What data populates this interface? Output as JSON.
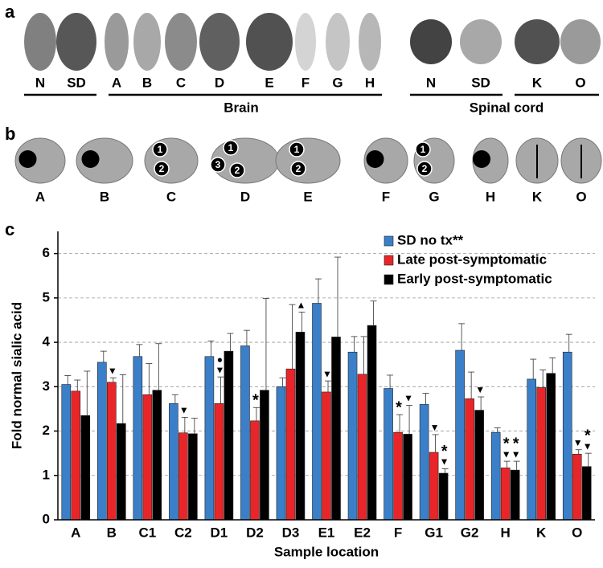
{
  "panel_a": {
    "label": "a",
    "items": [
      "N",
      "SD",
      "A",
      "B",
      "C",
      "D",
      "E",
      "F",
      "G",
      "H",
      "N",
      "SD",
      "K",
      "O"
    ],
    "groups": [
      "Brain",
      "Spinal cord"
    ]
  },
  "panel_b": {
    "label": "b",
    "items": [
      {
        "name": "A",
        "markers": []
      },
      {
        "name": "B",
        "markers": []
      },
      {
        "name": "C",
        "markers": [
          "1",
          "2"
        ]
      },
      {
        "name": "D",
        "markers": [
          "1",
          "3",
          "2"
        ]
      },
      {
        "name": "E",
        "markers": [
          "1",
          "2"
        ]
      },
      {
        "name": "F",
        "markers": []
      },
      {
        "name": "G",
        "markers": [
          "1",
          "2"
        ]
      },
      {
        "name": "H",
        "markers": []
      },
      {
        "name": "K",
        "markers": []
      },
      {
        "name": "O",
        "markers": []
      }
    ]
  },
  "chart_data": {
    "type": "bar",
    "panel_label": "c",
    "y_label": "Fold normal sialic acid",
    "x_label": "Sample location",
    "categories": [
      "A",
      "B",
      "C1",
      "C2",
      "D1",
      "D2",
      "D3",
      "E1",
      "E2",
      "F",
      "G1",
      "G2",
      "H",
      "K",
      "O"
    ],
    "series": [
      {
        "name": "SD no tx**",
        "color": "#3b7fc8",
        "values": [
          3.05,
          3.55,
          3.68,
          2.62,
          3.68,
          3.92,
          3.0,
          4.88,
          3.78,
          2.96,
          2.6,
          3.82,
          1.97,
          3.17,
          3.78
        ],
        "errors": [
          0.2,
          0.25,
          0.27,
          0.2,
          0.35,
          0.35,
          0.2,
          0.55,
          0.35,
          0.3,
          0.25,
          0.6,
          0.1,
          0.45,
          0.4
        ]
      },
      {
        "name": "Late post-symptomatic",
        "color": "#e8262a",
        "values": [
          2.9,
          3.1,
          2.82,
          1.96,
          2.62,
          2.23,
          3.4,
          2.88,
          3.28,
          1.97,
          1.52,
          2.73,
          1.17,
          2.98,
          1.48
        ],
        "errors": [
          0.25,
          0.1,
          0.7,
          0.35,
          0.6,
          0.3,
          1.45,
          0.25,
          0.85,
          0.4,
          0.4,
          0.6,
          0.15,
          0.4,
          0.1
        ]
      },
      {
        "name": "Early post-symptomatic",
        "color": "#000000",
        "values": [
          2.35,
          2.17,
          2.92,
          1.94,
          3.8,
          2.92,
          4.23,
          4.12,
          4.38,
          1.93,
          1.05,
          2.47,
          1.12,
          3.3,
          1.2
        ],
        "errors": [
          1.0,
          1.1,
          1.05,
          0.35,
          0.4,
          2.07,
          0.45,
          1.8,
          0.55,
          0.65,
          0.1,
          0.3,
          0.2,
          0.35,
          0.3
        ]
      }
    ],
    "annotations": [
      {
        "text": "▼",
        "category": "B",
        "series": "Late post-symptomatic"
      },
      {
        "text": "▼",
        "category": "C2",
        "series": "Late post-symptomatic"
      },
      {
        "text": "▼",
        "category": "D1",
        "series": "Late post-symptomatic"
      },
      {
        "text": "●",
        "category": "D1",
        "series": "Late post-symptomatic"
      },
      {
        "text": "*",
        "category": "D2",
        "series": "Late post-symptomatic"
      },
      {
        "text": "▲",
        "category": "D3",
        "series": "Early post-symptomatic"
      },
      {
        "text": "▼",
        "category": "E1",
        "series": "Late post-symptomatic"
      },
      {
        "text": "*",
        "category": "F",
        "series": "Late post-symptomatic"
      },
      {
        "text": "▼",
        "category": "F",
        "series": "Early post-symptomatic"
      },
      {
        "text": "▼",
        "category": "G1",
        "series": "Late post-symptomatic"
      },
      {
        "text": "▼",
        "category": "G1",
        "series": "Early post-symptomatic"
      },
      {
        "text": "*",
        "category": "G1",
        "series": "Early post-symptomatic"
      },
      {
        "text": "▼",
        "category": "G2",
        "series": "Early post-symptomatic"
      },
      {
        "text": "▼",
        "category": "H",
        "series": "Late post-symptomatic"
      },
      {
        "text": "*",
        "category": "H",
        "series": "Late post-symptomatic"
      },
      {
        "text": "▼",
        "category": "H",
        "series": "Early post-symptomatic"
      },
      {
        "text": "*",
        "category": "H",
        "series": "Early post-symptomatic"
      },
      {
        "text": "▼",
        "category": "O",
        "series": "Late post-symptomatic"
      },
      {
        "text": "▼",
        "category": "O",
        "series": "Early post-symptomatic"
      },
      {
        "text": "*",
        "category": "O",
        "series": "Early post-symptomatic"
      }
    ],
    "ylim": [
      0,
      6.5
    ],
    "yticks": [
      0,
      1,
      2,
      3,
      4,
      5,
      6
    ],
    "grid": true,
    "legend": "upper right"
  }
}
